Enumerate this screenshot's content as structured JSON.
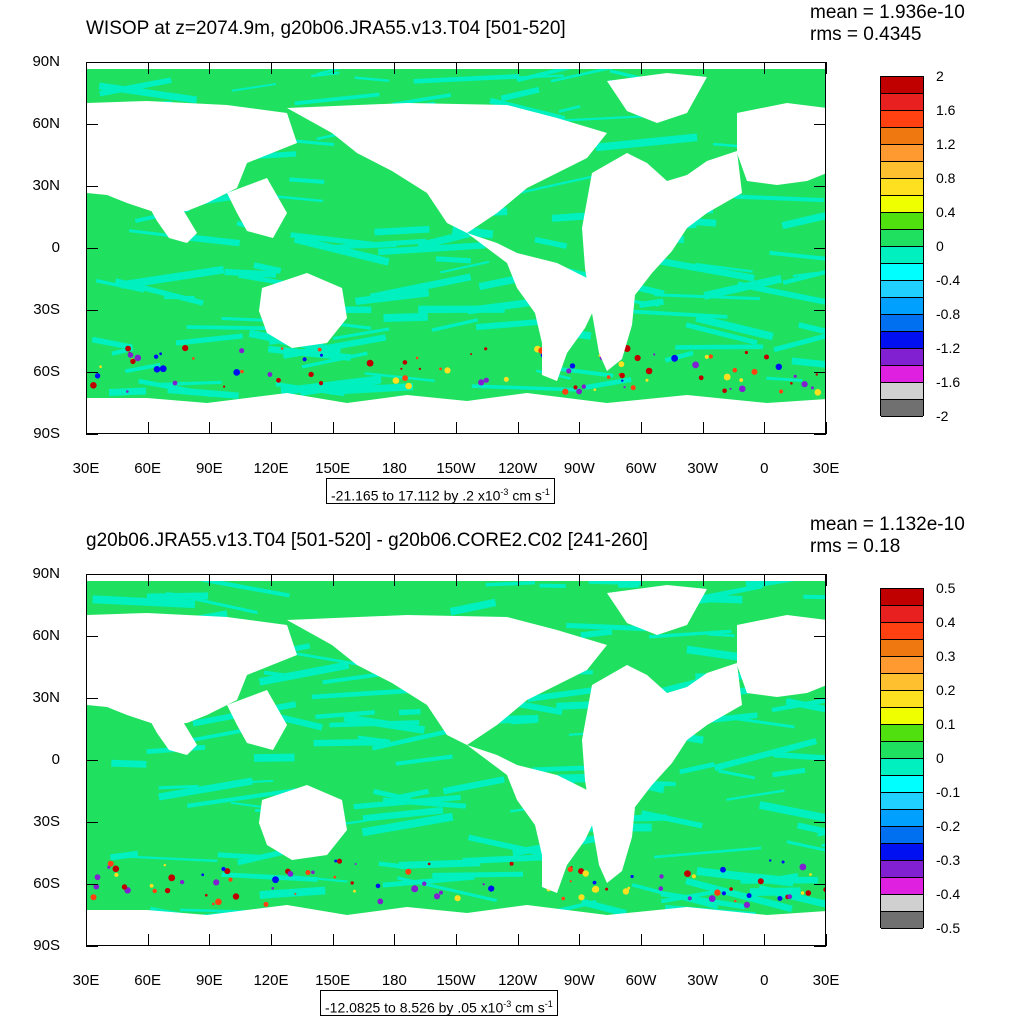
{
  "panels": [
    {
      "title": "WISOP at z=2074.9m, g20b06.JRA55.v13.T04 [501-520]",
      "mean": "mean = 1.936e-10",
      "rms": "rms = 0.4345",
      "range": "-21.165 to 17.112 by .2 x10",
      "range_exp": "-3",
      "range_unit": " cm s",
      "range_unit_exp": "-1",
      "colorbar_labels": [
        "2",
        "1.6",
        "1.2",
        "0.8",
        "0.4",
        "0",
        "-0.4",
        "-0.8",
        "-1.2",
        "-1.6",
        "-2"
      ]
    },
    {
      "title": "g20b06.JRA55.v13.T04 [501-520] - g20b06.CORE2.C02 [241-260]",
      "mean": "mean = 1.132e-10",
      "rms": "rms = 0.18",
      "range": "-12.0825 to 8.526 by .05 x10",
      "range_exp": "-3",
      "range_unit": " cm s",
      "range_unit_exp": "-1",
      "colorbar_labels": [
        "0.5",
        "0.4",
        "0.3",
        "0.2",
        "0.1",
        "0",
        "-0.1",
        "-0.2",
        "-0.3",
        "-0.4",
        "-0.5"
      ]
    }
  ],
  "axes": {
    "lat_labels": [
      "90N",
      "60N",
      "30N",
      "0",
      "30S",
      "60S",
      "90S"
    ],
    "lon_labels": [
      "30E",
      "60E",
      "90E",
      "120E",
      "150E",
      "180",
      "150W",
      "120W",
      "90W",
      "60W",
      "30W",
      "0",
      "30E"
    ]
  },
  "colorbar_colors": [
    "#c00000",
    "#e82020",
    "#ff4010",
    "#f07810",
    "#ff9a30",
    "#ffc030",
    "#ffe020",
    "#f0ff00",
    "#50e010",
    "#20e060",
    "#00f0c0",
    "#00ffff",
    "#20d0ff",
    "#00a0ff",
    "#0070f0",
    "#0010f0",
    "#8020d0",
    "#e020e0",
    "#d0d0d0",
    "#707070"
  ],
  "map_colors": {
    "ocean_main": "#20e060",
    "ocean_alt": "#00f0c0",
    "land": "#ffffff"
  }
}
